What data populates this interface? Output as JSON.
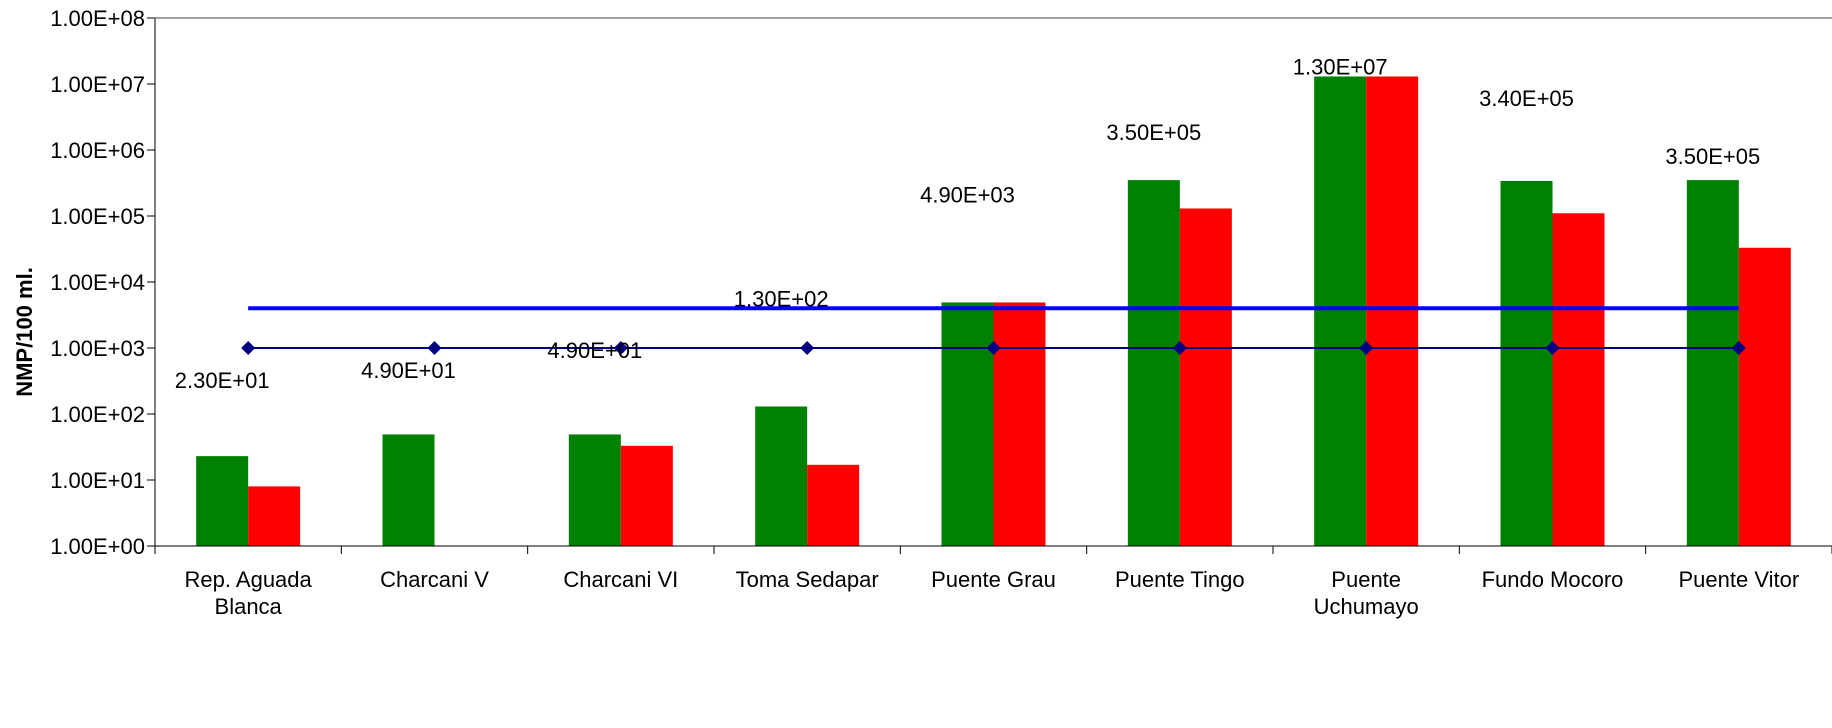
{
  "chart_data": {
    "type": "bar",
    "title": "",
    "xlabel": "",
    "ylabel": "NMP/100 ml.",
    "yscale": "log",
    "ylim": [
      1,
      100000000
    ],
    "yticks": [
      "1.00E+00",
      "1.00E+01",
      "1.00E+02",
      "1.00E+03",
      "1.00E+04",
      "1.00E+05",
      "1.00E+06",
      "1.00E+07",
      "1.00E+08"
    ],
    "grid": false,
    "legend": "none",
    "categories": [
      "Rep. Aguada Blanca",
      "Charcani V",
      "Charcani VI",
      "Toma Sedapar",
      "Puente Grau",
      "Puente Tingo",
      "Puente Uchumayo",
      "Fundo Mocoro",
      "Puente Vitor"
    ],
    "series": [
      {
        "type": "bar",
        "color": "#008000",
        "values": [
          23,
          49,
          49,
          130,
          4900,
          350000,
          13000000,
          340000,
          350000
        ]
      },
      {
        "type": "bar",
        "color": "#ff0000",
        "values": [
          8,
          null,
          33,
          17,
          4900,
          130000,
          13000000,
          110000,
          33000
        ]
      },
      {
        "type": "line",
        "color": "#0000ff",
        "values": [
          4000,
          4000,
          4000,
          4000,
          4000,
          4000,
          4000,
          4000,
          4000
        ]
      },
      {
        "type": "line-markers",
        "color": "#000080",
        "marker": "diamond",
        "values": [
          1000,
          1000,
          1000,
          1000,
          1000,
          1000,
          1000,
          1000,
          1000
        ]
      }
    ],
    "data_labels": [
      "2.30E+01",
      "4.90E+01",
      "4.90E+01",
      "1.30E+02",
      "4.90E+03",
      "3.50E+05",
      "1.30E+07",
      "3.40E+05",
      "3.50E+05"
    ]
  }
}
